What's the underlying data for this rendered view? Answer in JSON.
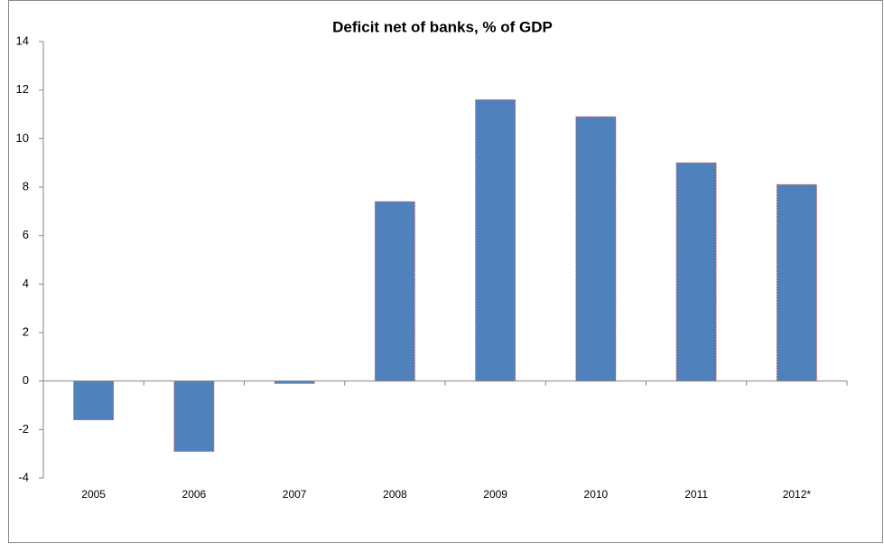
{
  "chart_data": {
    "type": "bar",
    "title": "Deficit net of banks, % of GDP",
    "categories": [
      "2005",
      "2006",
      "2007",
      "2008",
      "2009",
      "2010",
      "2011",
      "2012*"
    ],
    "values": [
      -1.6,
      -2.9,
      -0.1,
      7.4,
      11.6,
      10.9,
      9.0,
      8.1
    ],
    "color": "#4f81bd",
    "ylim": [
      -4,
      14
    ],
    "yticks": [
      -4,
      -2,
      0,
      2,
      4,
      6,
      8,
      10,
      12,
      14
    ],
    "grid": false
  }
}
